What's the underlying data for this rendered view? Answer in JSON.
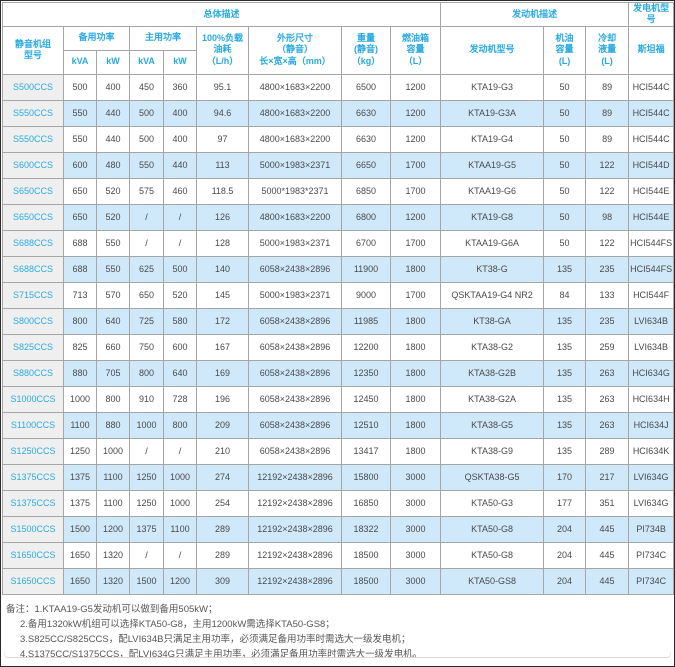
{
  "table": {
    "bands": {
      "overall": "总体描述",
      "engine": "发动机描述",
      "generator": "发电机型号"
    },
    "headers": {
      "model": "静音机组\n型号",
      "standby_power": "备用功率",
      "prime_power": "主用功率",
      "kva": "kVA",
      "kw": "kW",
      "fuel_consumption": "100%负载\n油耗\n（L/h）",
      "dimensions": "外形尺寸\n（静音）\n长×宽×高（mm）",
      "weight": "重量\n(静音)\n（kg）",
      "fuel_tank": "燃油箱\n容量\n（L）",
      "engine_model": "发动机型号",
      "oil_capacity": "机油\n容量\n(L)",
      "coolant_capacity": "冷却\n液量\n(L)",
      "stamford": "斯坦福"
    },
    "columns": [
      "model",
      "standby_kva",
      "standby_kw",
      "prime_kva",
      "prime_kw",
      "fuel_lph",
      "dimensions_mm",
      "weight_kg",
      "tank_l",
      "engine_model",
      "oil_l",
      "coolant_l",
      "generator_model"
    ],
    "rows": [
      [
        "S500CCS",
        "500",
        "400",
        "450",
        "360",
        "95.1",
        "4800×1683×2200",
        "6500",
        "1200",
        "KTA19-G3",
        "50",
        "89",
        "HCI544C"
      ],
      [
        "S550CCS",
        "550",
        "440",
        "500",
        "400",
        "94.6",
        "4800×1683×2200",
        "6630",
        "1200",
        "KTA19-G3A",
        "50",
        "89",
        "HCI544C"
      ],
      [
        "S550CCS",
        "550",
        "440",
        "500",
        "400",
        "97",
        "4800×1683×2200",
        "6630",
        "1200",
        "KTA19-G4",
        "50",
        "89",
        "HCI544C"
      ],
      [
        "S600CCS",
        "600",
        "480",
        "550",
        "440",
        "113",
        "5000×1983×2371",
        "6650",
        "1700",
        "KTAA19-G5",
        "50",
        "122",
        "HCI544D"
      ],
      [
        "S650CCS",
        "650",
        "520",
        "575",
        "460",
        "118.5",
        "5000*1983*2371",
        "6850",
        "1700",
        "KTAA19-G6",
        "50",
        "122",
        "HCI544E"
      ],
      [
        "S650CCS",
        "650",
        "520",
        "/",
        "/",
        "126",
        "4800×1683×2200",
        "6800",
        "1200",
        "KTA19-G8",
        "50",
        "98",
        "HCI544E"
      ],
      [
        "S688CCS",
        "688",
        "550",
        "/",
        "/",
        "128",
        "5000×1983×2371",
        "6700",
        "1700",
        "KTAA19-G6A",
        "50",
        "122",
        "HCI544FS"
      ],
      [
        "S688CCS",
        "688",
        "550",
        "625",
        "500",
        "140",
        "6058×2438×2896",
        "11900",
        "1800",
        "KT38-G",
        "135",
        "235",
        "HCI544FS"
      ],
      [
        "S715CCS",
        "713",
        "570",
        "650",
        "520",
        "145",
        "5000×1983×2371",
        "9000",
        "1700",
        "QSKTAA19-G4 NR2",
        "84",
        "133",
        "HCI544F"
      ],
      [
        "S800CCS",
        "800",
        "640",
        "725",
        "580",
        "172",
        "6058×2438×2896",
        "11985",
        "1800",
        "KT38-GA",
        "135",
        "235",
        "LVI634B"
      ],
      [
        "S825CCS",
        "825",
        "660",
        "750",
        "600",
        "167",
        "6058×2438×2896",
        "12200",
        "1800",
        "KTA38-G2",
        "135",
        "259",
        "LVI634B"
      ],
      [
        "S880CCS",
        "880",
        "705",
        "800",
        "640",
        "169",
        "6058×2438×2896",
        "12350",
        "1800",
        "KTA38-G2B",
        "135",
        "263",
        "HCI634G"
      ],
      [
        "S1000CCS",
        "1000",
        "800",
        "910",
        "728",
        "196",
        "6058×2438×2896",
        "12450",
        "1800",
        "KTA38-G2A",
        "135",
        "263",
        "HCI634H"
      ],
      [
        "S1100CCS",
        "1100",
        "880",
        "1000",
        "800",
        "209",
        "6058×2438×2896",
        "12510",
        "1800",
        "KTA38-G5",
        "135",
        "263",
        "HCI634J"
      ],
      [
        "S1250CCS",
        "1250",
        "1000",
        "/",
        "/",
        "210",
        "6058×2438×2896",
        "13417",
        "1800",
        "KTA38-G9",
        "135",
        "289",
        "HCI634K"
      ],
      [
        "S1375CCS",
        "1375",
        "1100",
        "1250",
        "1000",
        "274",
        "12192×2438×2896",
        "15800",
        "3000",
        "QSKTA38-G5",
        "170",
        "217",
        "LVI634G"
      ],
      [
        "S1375CCS",
        "1375",
        "1100",
        "1250",
        "1000",
        "254",
        "12192×2438×2896",
        "16850",
        "3000",
        "KTA50-G3",
        "177",
        "351",
        "LVI634G"
      ],
      [
        "S1500CCS",
        "1500",
        "1200",
        "1375",
        "1100",
        "289",
        "12192×2438×2896",
        "18322",
        "3000",
        "KTA50-G8",
        "204",
        "445",
        "PI734B"
      ],
      [
        "S1650CCS",
        "1650",
        "1320",
        "/",
        "/",
        "289",
        "12192×2438×2896",
        "18500",
        "3000",
        "KTA50-G8",
        "204",
        "445",
        "PI734C"
      ],
      [
        "S1650CCS",
        "1650",
        "1320",
        "1500",
        "1200",
        "309",
        "12192×2438×2896",
        "18500",
        "3000",
        "KTA50-GS8",
        "204",
        "445",
        "PI734C"
      ]
    ]
  },
  "notes": {
    "line1": "备注：1.KTAA19-G5发动机可以做到备用505kW；",
    "line2": "2.备用1320kW机组可以选择KTA50-G8，主用1200kW需选择KTA50-GS8；",
    "line3": "3.S825CC/S825CCS，配LVI634B只满足主用功率，必须满足备用功率时需选大一级发电机；",
    "line4": "4.S1375CC/S1375CCS，配LVI634G只满足主用功率，必须满足备用功率时需选大一级发电机。"
  },
  "colors": {
    "header_text": "#29a9e1",
    "model_text": "#2aabe2",
    "row_stripe": "#cfe9fb",
    "model_col_bg": "#efefef",
    "border": "#a6a6a6",
    "data_text": "#4a4a4a"
  }
}
